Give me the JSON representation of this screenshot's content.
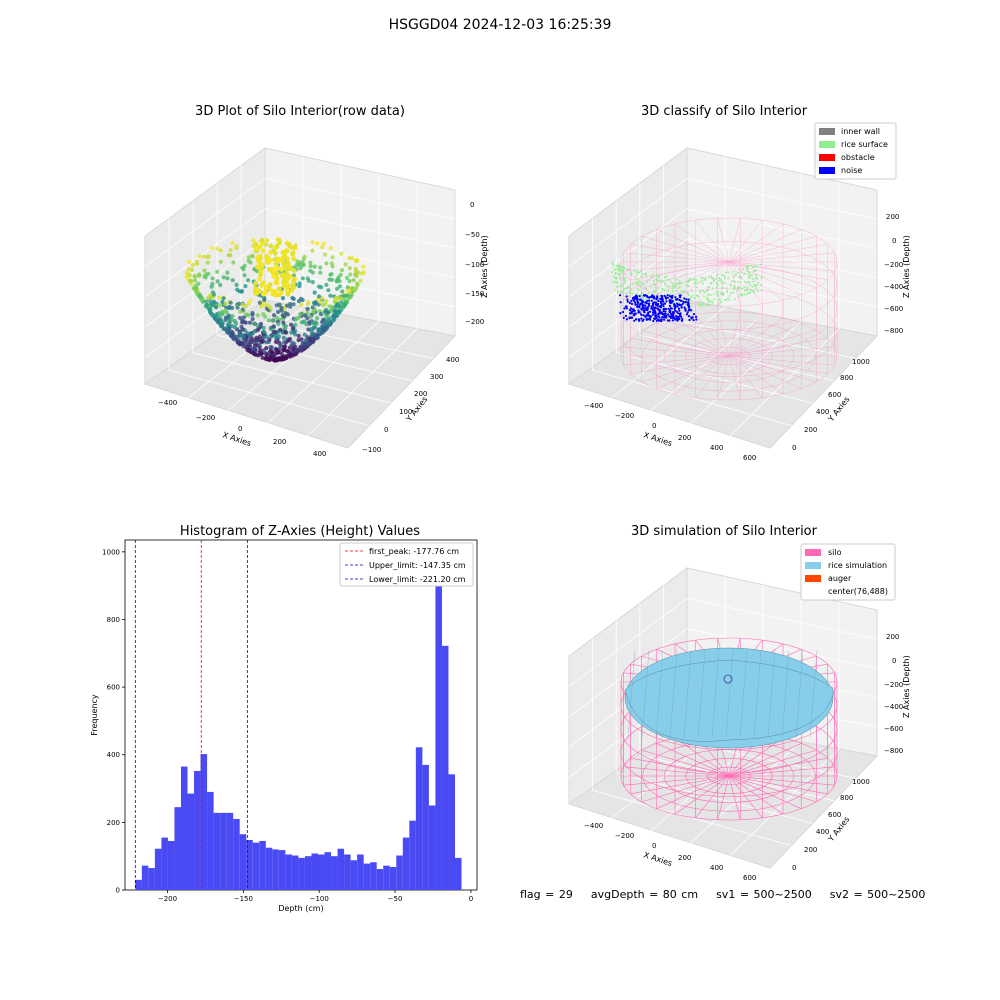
{
  "suptitle": "HSGGD04 2024-12-03 16:25:39",
  "colors": {
    "grid": "#e6e6e6",
    "pane_back": "#f2f2f2",
    "pane_side": "#ebebeb",
    "pane_floor": "#e5e5e5",
    "hist_bar": "#4a4af5",
    "peak_line": "#ff0000",
    "limit_line": "#0000cd",
    "silo_wire": "#ff69b4",
    "rice_sim": "#87ceeb",
    "inner_wall": "#808080",
    "rice_surface": "#90ee90",
    "obstacle": "#ff0000",
    "noise": "#0000ff",
    "auger": "#ff4500"
  },
  "panels": {
    "raw": {
      "title": "3D Plot of Silo Interior(row data)",
      "xlabel": "X Axies",
      "ylabel": "Y Axies",
      "zlabel": "Z Axies (Depth)",
      "x_ticks": [
        "−400",
        "−200",
        "0",
        "200",
        "400"
      ],
      "y_ticks": [
        "−100",
        "0",
        "100",
        "200",
        "300",
        "400"
      ],
      "z_ticks": [
        "0",
        "−50",
        "−100",
        "−150",
        "−200"
      ]
    },
    "classify": {
      "title": "3D classify of Silo Interior",
      "xlabel": "X Axies",
      "ylabel": "Y Axies",
      "zlabel": "Z Axies (Depth)",
      "x_ticks": [
        "−400",
        "−200",
        "0",
        "200",
        "400",
        "600"
      ],
      "y_ticks": [
        "0",
        "200",
        "400",
        "600",
        "800",
        "1000"
      ],
      "z_ticks": [
        "200",
        "0",
        "−200",
        "−400",
        "−600",
        "−800"
      ],
      "legend": [
        {
          "label": "inner wall",
          "color": "#808080"
        },
        {
          "label": "rice surface",
          "color": "#90ee90"
        },
        {
          "label": "obstacle",
          "color": "#ff0000"
        },
        {
          "label": "noise",
          "color": "#0000ff"
        }
      ]
    },
    "simulation": {
      "title": "3D simulation of Silo Interior",
      "xlabel": "X Axies",
      "ylabel": "Y Axies",
      "zlabel": "Z Axies (Depth)",
      "x_ticks": [
        "−400",
        "−200",
        "0",
        "200",
        "400",
        "600"
      ],
      "y_ticks": [
        "0",
        "200",
        "400",
        "600",
        "800",
        "1000"
      ],
      "z_ticks": [
        "200",
        "0",
        "−200",
        "−400",
        "−600",
        "−800"
      ],
      "legend": [
        {
          "label": "silo",
          "color": "#ff69b4"
        },
        {
          "label": "rice simulation",
          "color": "#87ceeb"
        },
        {
          "label": "auger",
          "color": "#ff4500"
        },
        {
          "label": "center(76,488)",
          "color": ""
        }
      ]
    }
  },
  "chart_data": {
    "type": "bar",
    "title": "Histogram of Z-Axies (Height) Values",
    "xlabel": "Depth (cm)",
    "ylabel": "Frequency",
    "xlim": [
      -228,
      4
    ],
    "ylim": [
      0,
      1035
    ],
    "x_ticks": [
      -200,
      -150,
      -100,
      -50,
      0
    ],
    "x_tick_labels": [
      "−200",
      "−150",
      "−100",
      "−50",
      "0"
    ],
    "y_ticks": [
      0,
      200,
      400,
      600,
      800,
      1000
    ],
    "bin_start": -221.2,
    "bin_width": 4.3,
    "values": [
      30,
      72,
      65,
      122,
      155,
      145,
      245,
      365,
      285,
      352,
      402,
      290,
      228,
      228,
      228,
      210,
      165,
      148,
      140,
      145,
      125,
      120,
      118,
      105,
      102,
      95,
      100,
      108,
      105,
      112,
      100,
      122,
      105,
      88,
      105,
      78,
      82,
      62,
      72,
      68,
      102,
      155,
      205,
      422,
      370,
      250,
      975,
      722,
      342,
      95
    ],
    "vlines": [
      {
        "label": "first_peak: -177.76 cm",
        "x": -177.76,
        "color": "#ff0000"
      },
      {
        "label": "Upper_limit: -147.35 cm",
        "x": -147.35,
        "color": "#0000cd"
      },
      {
        "label": "Lower_limit: -221.20 cm",
        "x": -221.2,
        "color": "#0000cd"
      }
    ],
    "legend_position": "upper right"
  },
  "footer": {
    "flag": "flag = 29",
    "avg_depth": "avgDepth = 80 cm",
    "sv1": "sv1 = 500~2500",
    "sv2": "sv2 = 500~2500"
  }
}
